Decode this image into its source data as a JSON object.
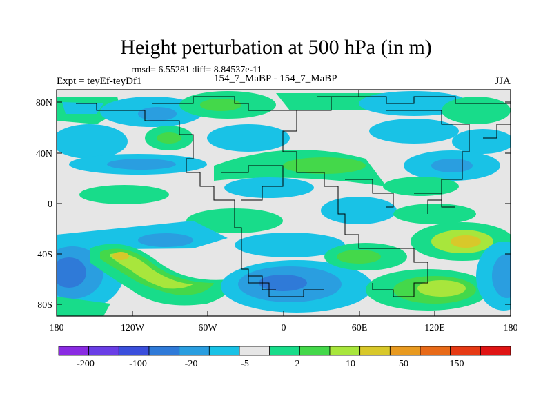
{
  "title": "Height perturbation at 500 hPa (in m)",
  "stats_line": "rmsd= 6.55281 diff= 8.84537e-11",
  "left_label": "Expt = teyEf-teyDf1",
  "center_label": "154_7_MaBP - 154_7_MaBP",
  "right_label": "JJA",
  "lat_ticks": [
    "80N",
    "40N",
    "0",
    "40S",
    "80S"
  ],
  "lon_ticks": [
    "180",
    "120W",
    "60W",
    "0",
    "60E",
    "120E",
    "180"
  ],
  "colorbar_labels": [
    "-200",
    "-100",
    "-20",
    "-5",
    "2",
    "10",
    "50",
    "150"
  ],
  "colorbar_colors": [
    "#8a2be2",
    "#6a3ee6",
    "#3b4fdc",
    "#2f7ad8",
    "#2a9ee0",
    "#19c2e6",
    "#e6e6e6",
    "#18dc8a",
    "#44d84a",
    "#a8e63c",
    "#d8c82a",
    "#e89a20",
    "#e86a18",
    "#e63a14",
    "#e01414"
  ],
  "colors": {
    "background_field": "#e6e6e6",
    "blue_mid": "#2f7ad8",
    "blue_light": "#2a9ee0",
    "cyan": "#19c2e6",
    "green": "#18dc8a",
    "lime": "#44d84a",
    "yellow_green": "#a8e63c",
    "yellow": "#d8c82a",
    "orange": "#e89a20"
  }
}
